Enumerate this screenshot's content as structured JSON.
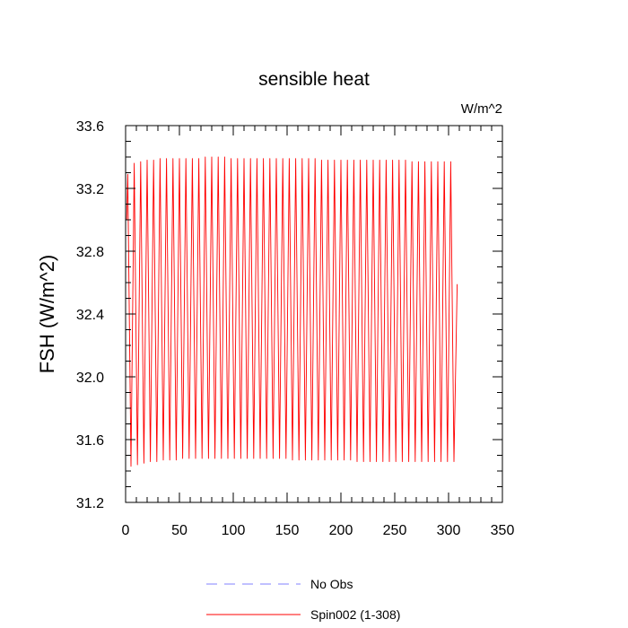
{
  "chart_data": {
    "type": "line",
    "title": "sensible heat",
    "units_label": "W/m^2",
    "ylabel": "FSH  (W/m^2)",
    "xlabel": "",
    "xlim": [
      0,
      350
    ],
    "ylim": [
      31.2,
      33.6
    ],
    "x_ticks": [
      0,
      50,
      100,
      150,
      200,
      250,
      300,
      350
    ],
    "y_ticks": [
      31.2,
      31.6,
      32.0,
      32.4,
      32.8,
      33.2,
      33.6
    ],
    "x_tick_labels": [
      "0",
      "50",
      "100",
      "150",
      "200",
      "250",
      "300",
      "350"
    ],
    "y_tick_labels": [
      "31.2",
      "31.6",
      "32.0",
      "32.4",
      "32.8",
      "33.2",
      "33.6"
    ],
    "grid": false,
    "legend_position": "bottom",
    "series": [
      {
        "name": "No Obs",
        "color": "#8080ff",
        "dashed": true,
        "x": [],
        "y": []
      },
      {
        "name": "Spin002 (1-308)",
        "color": "#ff0000",
        "dashed": false,
        "cycle_period": 6,
        "x_start": 1,
        "x_end": 308,
        "first_value": 33.0,
        "last_value": 32.59,
        "peak_x": [
          2,
          8,
          14,
          20,
          26,
          32,
          38,
          44,
          50,
          56,
          62,
          68,
          74,
          80,
          86,
          92,
          98,
          104,
          110,
          116,
          122,
          128,
          134,
          140,
          146,
          152,
          158,
          164,
          170,
          176,
          182,
          188,
          194,
          200,
          206,
          212,
          218,
          224,
          230,
          236,
          242,
          248,
          254,
          260,
          266,
          272,
          278,
          284,
          290,
          296,
          302
        ],
        "peak_y": [
          33.29,
          33.36,
          33.37,
          33.38,
          33.38,
          33.39,
          33.39,
          33.39,
          33.39,
          33.39,
          33.39,
          33.39,
          33.4,
          33.4,
          33.4,
          33.4,
          33.39,
          33.39,
          33.39,
          33.39,
          33.39,
          33.39,
          33.39,
          33.39,
          33.39,
          33.39,
          33.39,
          33.39,
          33.39,
          33.39,
          33.38,
          33.38,
          33.38,
          33.38,
          33.38,
          33.38,
          33.38,
          33.38,
          33.38,
          33.38,
          33.38,
          33.38,
          33.38,
          33.38,
          33.37,
          33.37,
          33.37,
          33.37,
          33.37,
          33.37,
          33.37
        ],
        "trough_x": [
          5,
          11,
          17,
          23,
          29,
          35,
          41,
          47,
          53,
          59,
          65,
          71,
          77,
          83,
          89,
          95,
          101,
          107,
          113,
          119,
          125,
          131,
          137,
          143,
          149,
          155,
          161,
          167,
          173,
          179,
          185,
          191,
          197,
          203,
          209,
          215,
          221,
          227,
          233,
          239,
          245,
          251,
          257,
          263,
          269,
          275,
          281,
          287,
          293,
          299,
          305
        ],
        "trough_y": [
          31.43,
          31.44,
          31.45,
          31.46,
          31.46,
          31.47,
          31.47,
          31.47,
          31.48,
          31.48,
          31.48,
          31.48,
          31.48,
          31.48,
          31.48,
          31.48,
          31.48,
          31.48,
          31.48,
          31.48,
          31.48,
          31.48,
          31.48,
          31.48,
          31.48,
          31.47,
          31.47,
          31.47,
          31.47,
          31.47,
          31.47,
          31.47,
          31.47,
          31.47,
          31.47,
          31.46,
          31.46,
          31.46,
          31.46,
          31.46,
          31.46,
          31.46,
          31.46,
          31.46,
          31.46,
          31.46,
          31.46,
          31.46,
          31.46,
          31.46,
          31.46
        ]
      }
    ]
  }
}
